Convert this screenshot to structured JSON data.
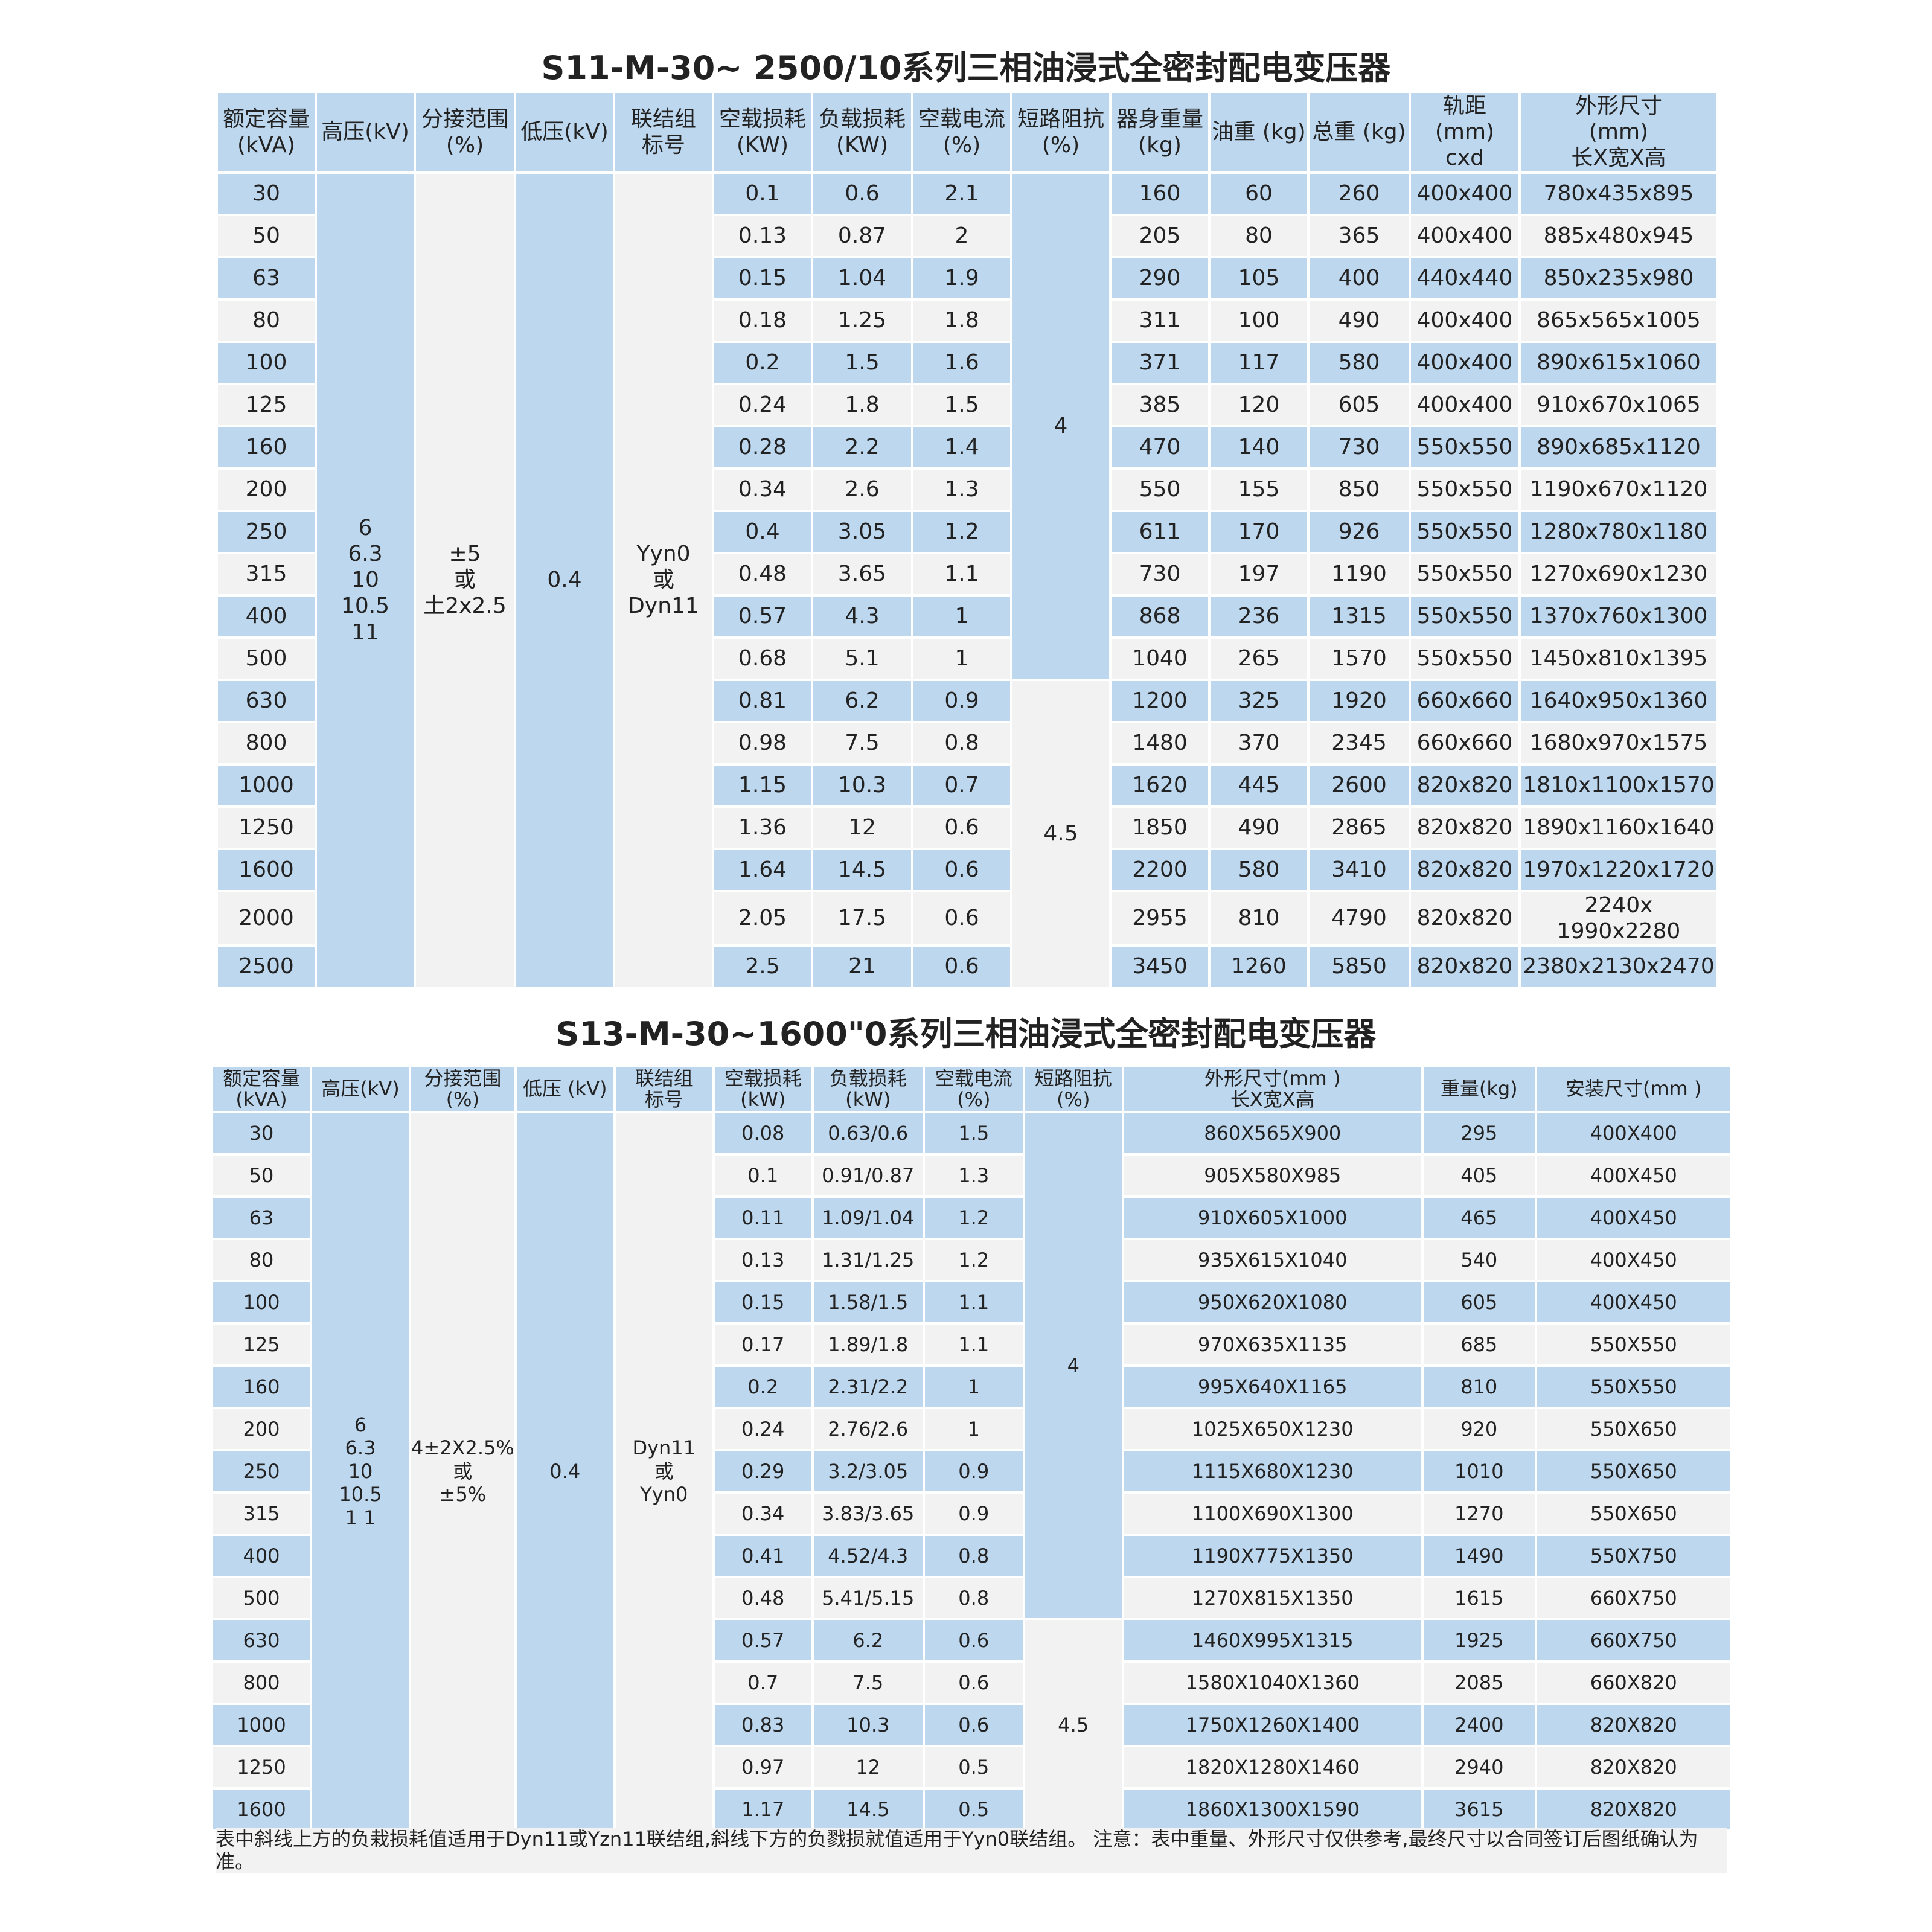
{
  "tables": [
    {
      "title": "S11-M-30~ 2500/10系列三相油浸式全密封配电变压器",
      "columns": [
        {
          "header": "额定容量\n(kVA)",
          "cells": [
            "30",
            "50",
            "63",
            "80",
            "100",
            "125",
            "160",
            "200",
            "250",
            "315",
            "400",
            "500",
            "630",
            "800",
            "1000",
            "1250",
            "1600",
            "2000",
            "2500"
          ]
        },
        {
          "header": "高压(kV)",
          "cells": [
            "6\n6.3\n10\n10.5\n11"
          ]
        },
        {
          "header": "分接范围\n(%)",
          "cells": [
            "±5\n或\n土2x2.5"
          ]
        },
        {
          "header": "低压(kV)",
          "cells": [
            "0.4"
          ]
        },
        {
          "header": "联结组\n标号",
          "cells": [
            "Yyn0\n或\nDyn11"
          ]
        },
        {
          "header": "空载损耗\n(KW)",
          "cells": [
            "0.1",
            "0.13",
            "0.15",
            "0.18",
            "0.2",
            "0.24",
            "0.28",
            "0.34",
            "0.4",
            "0.48",
            "0.57",
            "0.68",
            "0.81",
            "0.98",
            "1.15",
            "1.36",
            "1.64",
            "2.05",
            "2.5"
          ]
        },
        {
          "header": "负载损耗\n(KW)",
          "cells": [
            "0.6",
            "0.87",
            "1.04",
            "1.25",
            "1.5",
            "1.8",
            "2.2",
            "2.6",
            "3.05",
            "3.65",
            "4.3",
            "5.1",
            "6.2",
            "7.5",
            "10.3",
            "12",
            "14.5",
            "17.5",
            "21"
          ]
        },
        {
          "header": "空载电流\n(%)",
          "cells": [
            "2.1",
            "2",
            "1.9",
            "1.8",
            "1.6",
            "1.5",
            "1.4",
            "1.3",
            "1.2",
            "1.1",
            "1",
            "1",
            "0.9",
            "0.8",
            "0.7",
            "0.6",
            "0.6",
            "0.6",
            "0.6"
          ]
        },
        {
          "header": "短路阻抗\n(%)",
          "cells": [
            "4",
            "4.5"
          ]
        },
        {
          "header": "器身重量\n(kg)",
          "cells": [
            "160",
            "205",
            "290",
            "311",
            "371",
            "385",
            "470",
            "550",
            "611",
            "730",
            "868",
            "1040",
            "1200",
            "1480",
            "1620",
            "1850",
            "2200",
            "2955",
            "3450"
          ]
        },
        {
          "header": "油重 (kg)",
          "cells": [
            "60",
            "80",
            "105",
            "100",
            "117",
            "120",
            "140",
            "155",
            "170",
            "197",
            "236",
            "265",
            "325",
            "370",
            "445",
            "490",
            "580",
            "810",
            "1260"
          ]
        },
        {
          "header": "总重 (kg)",
          "cells": [
            "260",
            "365",
            "400",
            "490",
            "580",
            "605",
            "730",
            "850",
            "926",
            "1190",
            "1315",
            "1570",
            "1920",
            "2345",
            "2600",
            "2865",
            "3410",
            "4790",
            "5850"
          ]
        },
        {
          "header": "轨距\n(mm)\ncxd",
          "cells": [
            "400x400",
            "400x400",
            "440x440",
            "400x400",
            "400x400",
            "400x400",
            "550x550",
            "550x550",
            "550x550",
            "550x550",
            "550x550",
            "550x550",
            "660x660",
            "660x660",
            "820x820",
            "820x820",
            "820x820",
            "820x820",
            "820x820"
          ]
        },
        {
          "header": "外形尺寸\n(mm)\n长X宽X高",
          "cells": [
            "780x435x895",
            "885x480x945",
            "850x235x980",
            "865x565x1005",
            "890x615x1060",
            "910x670x1065",
            "890x685x1120",
            "1190x670x1120",
            "1280x780x1180",
            "1270x690x1230",
            "1370x760x1300",
            "1450x810x1395",
            "1640x950x1360",
            "1680x970x1575",
            "1810x1100x1570",
            "1890x1160x1640",
            "1970x1220x1720",
            "2240x 1990x2280",
            "2380x2130x2470"
          ]
        }
      ]
    },
    {
      "title": "S13-M-30~1600\"0系列三相油浸式全密封配电变压器",
      "columns": [
        {
          "header": "额定容量\n(kVA)",
          "cells": [
            "30",
            "50",
            "63",
            "80",
            "100",
            "125",
            "160",
            "200",
            "250",
            "315",
            "400",
            "500",
            "630",
            "800",
            "1000",
            "1250",
            "1600"
          ]
        },
        {
          "header": "高压(kV)",
          "cells": [
            "6\n6.3\n10\n10.5\n1 1"
          ]
        },
        {
          "header": "分接范围\n(%)",
          "cells": [
            "4±2X2.5%\n或\n±5%"
          ]
        },
        {
          "header": "低压 (kV)",
          "cells": [
            "0.4"
          ]
        },
        {
          "header": "联结组\n标号",
          "cells": [
            "Dyn11\n或\nYyn0"
          ]
        },
        {
          "header": "空载损耗\n(kW)",
          "cells": [
            "0.08",
            "0.1",
            "0.11",
            "0.13",
            "0.15",
            "0.17",
            "0.2",
            "0.24",
            "0.29",
            "0.34",
            "0.41",
            "0.48",
            "0.57",
            "0.7",
            "0.83",
            "0.97",
            "1.17"
          ]
        },
        {
          "header": "负载损耗\n(kW)",
          "cells": [
            "0.63/0.6",
            "0.91/0.87",
            "1.09/1.04",
            "1.31/1.25",
            "1.58/1.5",
            "1.89/1.8",
            "2.31/2.2",
            "2.76/2.6",
            "3.2/3.05",
            "3.83/3.65",
            "4.52/4.3",
            "5.41/5.15",
            "6.2",
            "7.5",
            "10.3",
            "12",
            "14.5"
          ]
        },
        {
          "header": "空载电流\n(%)",
          "cells": [
            "1.5",
            "1.3",
            "1.2",
            "1.2",
            "1.1",
            "1.1",
            "1",
            "1",
            "0.9",
            "0.9",
            "0.8",
            "0.8",
            "0.6",
            "0.6",
            "0.6",
            "0.5",
            "0.5"
          ]
        },
        {
          "header": "短路阻抗\n(%)",
          "cells": [
            "4",
            "4.5"
          ]
        },
        {
          "header": "外形尺寸(mm )\n长X宽X高",
          "cells": [
            "860X565X900",
            "905X580X985",
            "910X605X1000",
            "935X615X1040",
            "950X620X1080",
            "970X635X1135",
            "995X640X1165",
            "1025X650X1230",
            "1115X680X1230",
            "1100X690X1300",
            "1190X775X1350",
            "1270X815X1350",
            "1460X995X1315",
            "1580X1040X1360",
            "1750X1260X1400",
            "1820X1280X1460",
            "1860X1300X1590"
          ]
        },
        {
          "header": "重量(kg)",
          "cells": [
            "295",
            "405",
            "465",
            "540",
            "605",
            "685",
            "810",
            "920",
            "1010",
            "1270",
            "1490",
            "1615",
            "1925",
            "2085",
            "2400",
            "2940",
            "3615"
          ]
        },
        {
          "header": "安装尺寸(mm )",
          "cells": [
            "400X400",
            "400X450",
            "400X450",
            "400X450",
            "400X450",
            "550X550",
            "550X550",
            "550X650",
            "550X650",
            "550X650",
            "550X750",
            "660X750",
            "660X750",
            "660X820",
            "820X820",
            "820X820",
            "820X820"
          ]
        }
      ]
    }
  ],
  "note": "表中斜线上方的负栽损耗值适用于Dyn11或Yzn11联结组,斜线下方的负戮损就值适用于Yyn0联结组。 注意：表中重量、外形尺寸仅供参考,最终尺寸以合同签订后图纸确认为准。"
}
